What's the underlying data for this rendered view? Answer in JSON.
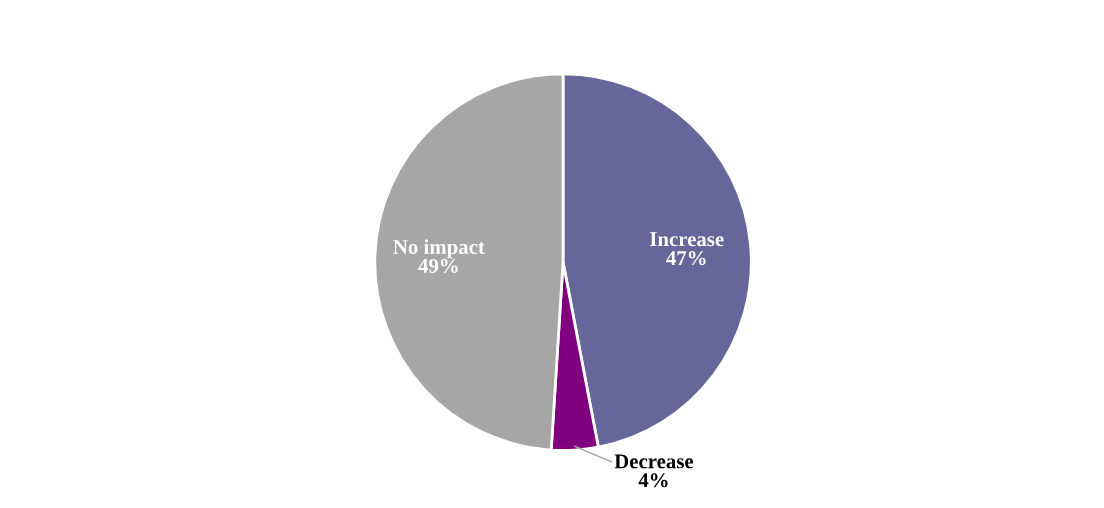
{
  "chart_data": {
    "type": "pie",
    "categories": [
      "Increase",
      "Decrease",
      "No impact"
    ],
    "values": [
      47,
      4,
      49
    ],
    "value_labels": [
      "47%",
      "4%",
      "49%"
    ],
    "colors": [
      "#66669a",
      "#800080",
      "#a6a6a6"
    ],
    "legend": false
  }
}
